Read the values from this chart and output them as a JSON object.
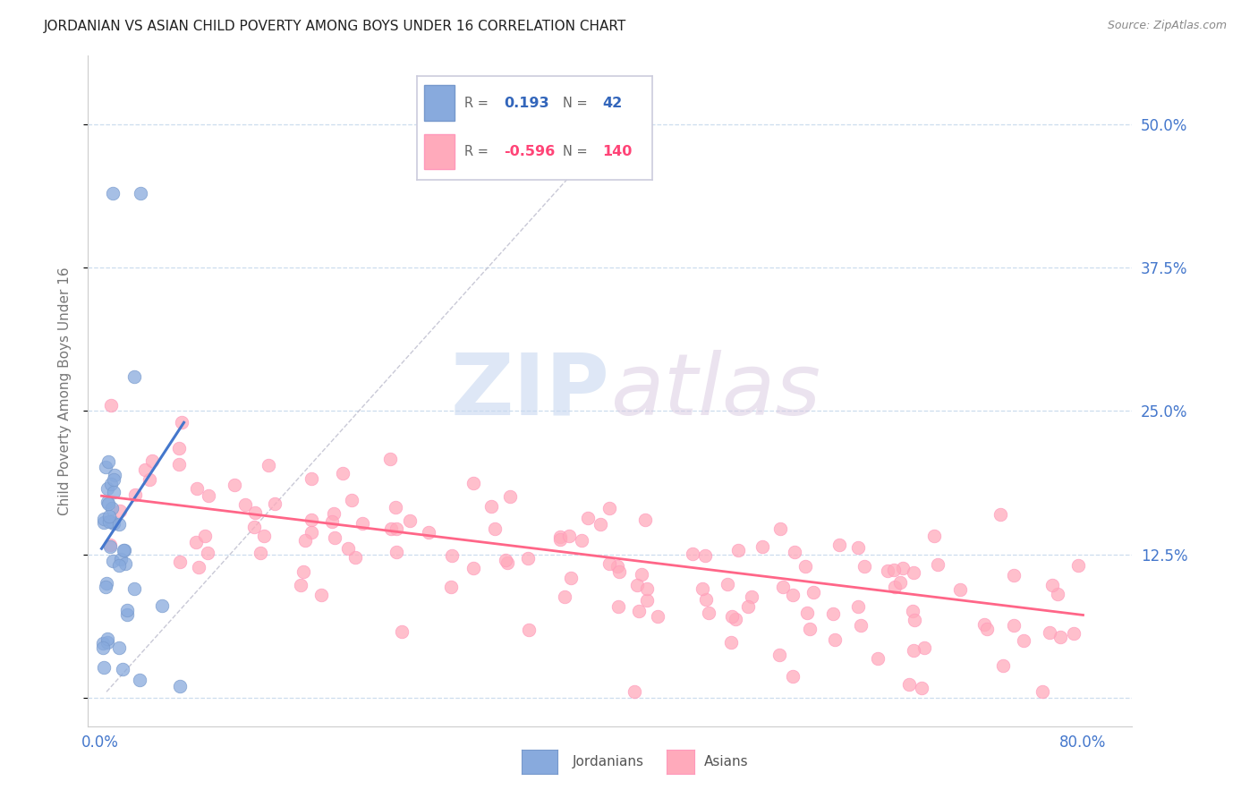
{
  "title": "JORDANIAN VS ASIAN CHILD POVERTY AMONG BOYS UNDER 16 CORRELATION CHART",
  "source": "Source: ZipAtlas.com",
  "ylabel": "Child Poverty Among Boys Under 16",
  "xmin": -0.01,
  "xmax": 0.84,
  "ymin": -0.025,
  "ymax": 0.56,
  "yticks": [
    0.0,
    0.125,
    0.25,
    0.375,
    0.5
  ],
  "ytick_labels_right": [
    "",
    "12.5%",
    "25.0%",
    "37.5%",
    "50.0%"
  ],
  "xticks": [
    0.0,
    0.2,
    0.4,
    0.6,
    0.8
  ],
  "xtick_labels": [
    "0.0%",
    "",
    "",
    "",
    "80.0%"
  ],
  "R_jordanian": 0.193,
  "N_jordanian": 42,
  "R_asian": -0.596,
  "N_asian": 140,
  "color_jordanian": "#88AADD",
  "color_asian": "#FFAABB",
  "color_line_jordanian": "#4477CC",
  "color_line_asian": "#FF6688",
  "watermark_color": "#D8E4F0",
  "grid_color": "#CCDDEE",
  "title_color": "#222222",
  "tick_label_color": "#4477CC",
  "ylabel_color": "#777777",
  "source_color": "#888888"
}
